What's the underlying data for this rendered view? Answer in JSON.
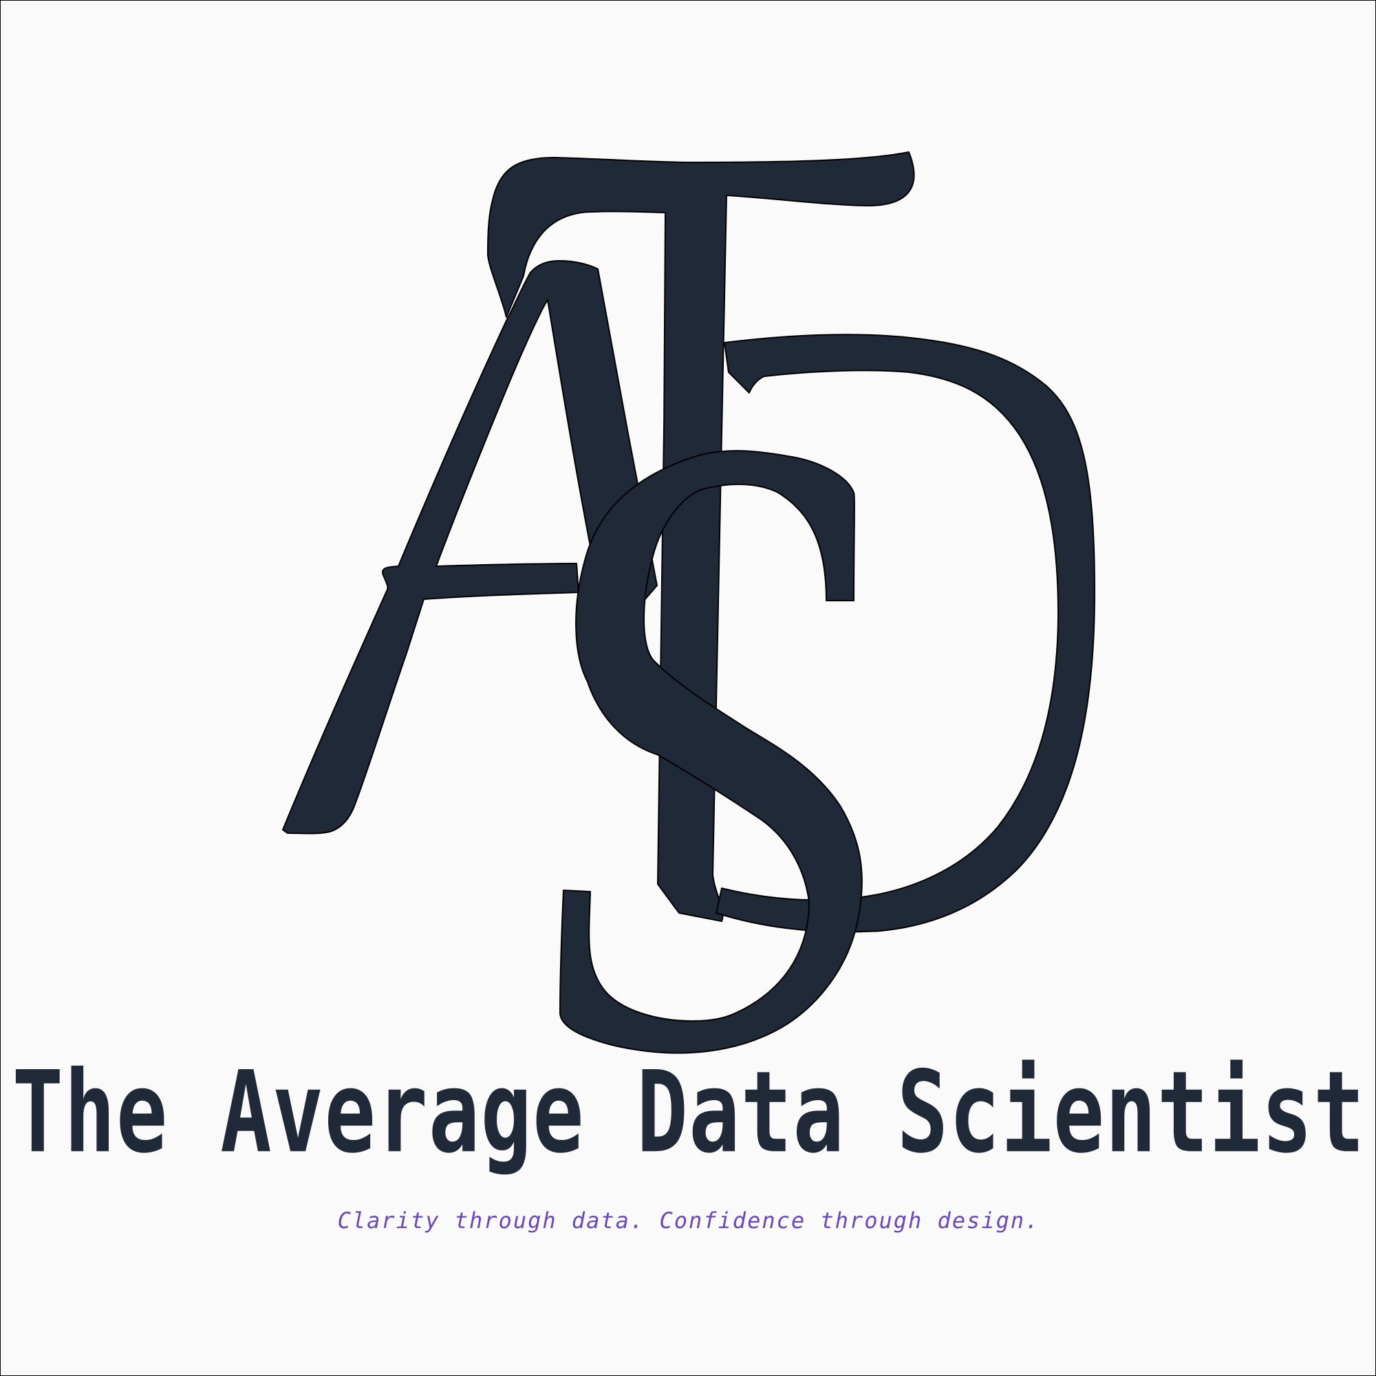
{
  "logo": {
    "monogram_letters": "ATSD",
    "monogram_color": "#1f2937",
    "monogram_outline": "#000000"
  },
  "brand": {
    "name": "The Average Data Scientist",
    "tagline": "Clarity through data. Confidence through design.",
    "name_color": "#1f2937",
    "tagline_color": "#6b46c1"
  },
  "background_color": "#fafafa"
}
